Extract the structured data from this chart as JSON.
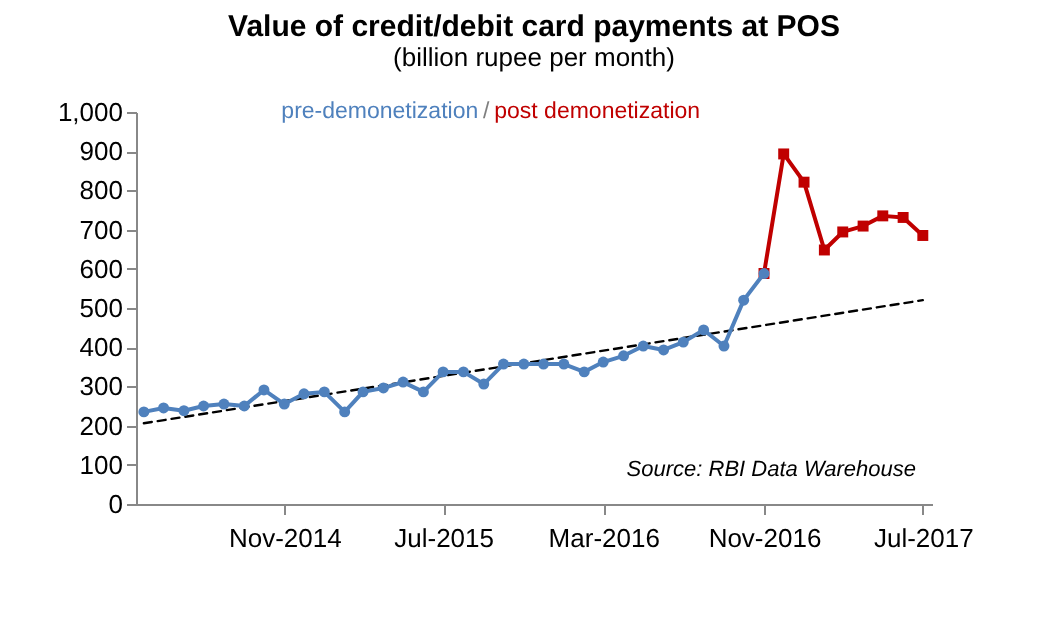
{
  "chart_data": {
    "type": "line",
    "title": "Value of credit/debit card payments at POS",
    "subtitle": "(billion rupee per month)",
    "x": [
      "2014-04",
      "2014-05",
      "2014-06",
      "2014-07",
      "2014-08",
      "2014-09",
      "2014-10",
      "2014-11",
      "2014-12",
      "2015-01",
      "2015-02",
      "2015-03",
      "2015-04",
      "2015-05",
      "2015-06",
      "2015-07",
      "2015-08",
      "2015-09",
      "2015-10",
      "2015-11",
      "2015-12",
      "2016-01",
      "2016-02",
      "2016-03",
      "2016-04",
      "2016-05",
      "2016-06",
      "2016-07",
      "2016-08",
      "2016-09",
      "2016-10",
      "2016-11"
    ],
    "series": [
      {
        "name": "pre-demonetization",
        "color": "#4f81bd",
        "marker": "circle",
        "values": [
          235,
          245,
          238,
          250,
          255,
          250,
          291,
          255,
          281,
          286,
          235,
          286,
          296,
          311,
          286,
          337,
          337,
          306,
          357,
          357,
          357,
          357,
          337,
          362,
          378,
          403,
          393,
          413,
          444,
          403,
          520,
          588
        ]
      },
      {
        "name": "post demonetization",
        "color": "#c00000",
        "marker": "square",
        "x": [
          "2016-11",
          "2016-12",
          "2017-01",
          "2017-02",
          "2017-03",
          "2017-04",
          "2017-05",
          "2017-06",
          "2017-07"
        ],
        "values": [
          588,
          893,
          821,
          648,
          694,
          709,
          735,
          731,
          685
        ]
      },
      {
        "type": "line",
        "color": "#000000",
        "line_style": "dashed",
        "marker": "none",
        "x": [
          "2014-04",
          "2017-07"
        ],
        "values": [
          206,
          520
        ]
      }
    ],
    "xlim": [
      "2014-03-20",
      "2017-07-15"
    ],
    "xticks": [
      {
        "value": "2014-11",
        "label": "Nov-2014"
      },
      {
        "value": "2015-07",
        "label": "Jul-2015"
      },
      {
        "value": "2016-03",
        "label": "Mar-2016"
      },
      {
        "value": "2016-11",
        "label": "Nov-2016"
      },
      {
        "value": "2017-07",
        "label": "Jul-2017"
      }
    ],
    "ylim": [
      0,
      1000
    ],
    "yticks": [
      0,
      100,
      200,
      300,
      400,
      500,
      600,
      700,
      800,
      900,
      {
        "value": 1000,
        "label": "1,000"
      }
    ],
    "grid": false,
    "legend": "top",
    "annotations": [
      "/",
      "Source: RBI Data Warehouse"
    ]
  }
}
